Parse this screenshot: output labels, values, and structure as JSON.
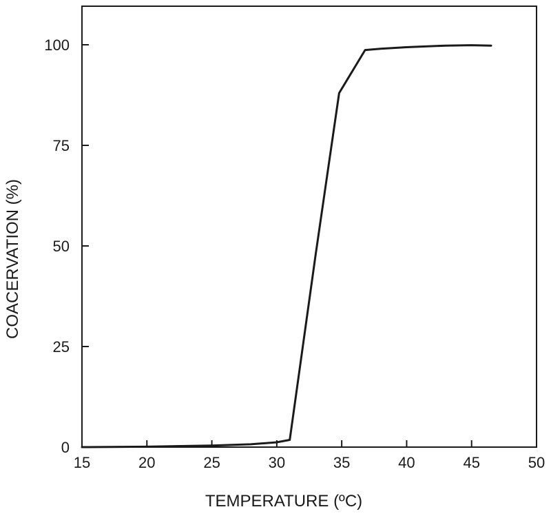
{
  "chart_data": {
    "type": "line",
    "title": "",
    "xlabel": "TEMPERATURE (ºC)",
    "ylabel": "COACERVATION (%)",
    "xlim": [
      15,
      50
    ],
    "ylim": [
      0,
      110
    ],
    "xticks": [
      15,
      20,
      25,
      30,
      35,
      40,
      45,
      50
    ],
    "yticks": [
      0,
      25,
      50,
      75,
      100
    ],
    "x_tick_labels": [
      "15",
      "20",
      "25",
      "30",
      "35",
      "40",
      "45",
      "50"
    ],
    "y_tick_labels": [
      "0",
      "25",
      "50",
      "75",
      "100"
    ],
    "grid": false,
    "legend": "none",
    "series": [
      {
        "x": [
          15,
          20,
          25,
          28,
          30,
          31,
          33,
          34.8,
          36.8,
          38,
          40,
          43,
          45,
          46.5
        ],
        "y": [
          0,
          0.1,
          0.4,
          0.7,
          1.2,
          1.8,
          48,
          88,
          98.7,
          99,
          99.4,
          99.8,
          99.9,
          99.8
        ]
      }
    ]
  }
}
